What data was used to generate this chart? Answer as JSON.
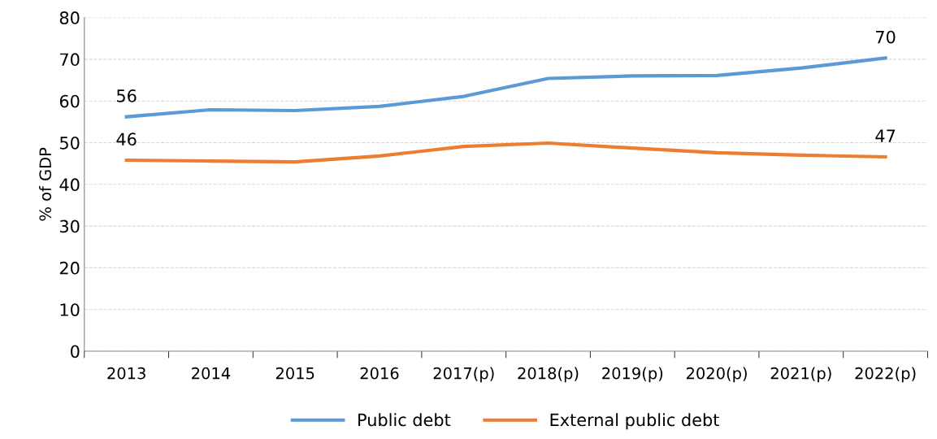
{
  "chart_data": {
    "type": "line",
    "ylabel": "% of GDP",
    "categories": [
      "2013",
      "2014",
      "2015",
      "2016",
      "2017(p)",
      "2018(p)",
      "2019(p)",
      "2020(p)",
      "2021(p)",
      "2022(p)"
    ],
    "series": [
      {
        "name": "Public debt",
        "color": "#5b9bd5",
        "values": [
          56.2,
          57.9,
          57.7,
          58.7,
          61.1,
          65.4,
          66.0,
          66.1,
          67.9,
          70.3
        ],
        "value_labels": [
          "56",
          null,
          null,
          null,
          null,
          null,
          null,
          null,
          null,
          "70"
        ]
      },
      {
        "name": "External public debt",
        "color": "#ed7d31",
        "values": [
          45.8,
          45.6,
          45.4,
          46.8,
          49.1,
          49.9,
          48.7,
          47.6,
          47.0,
          46.6
        ],
        "value_labels": [
          "46",
          null,
          null,
          null,
          null,
          null,
          null,
          null,
          null,
          "47"
        ]
      }
    ],
    "ylim": [
      0,
      80
    ],
    "yticks": [
      0,
      10,
      20,
      30,
      40,
      50,
      60,
      70,
      80
    ],
    "grid": "y",
    "legend": "bottom",
    "marker": "none",
    "line_style": "solid"
  }
}
